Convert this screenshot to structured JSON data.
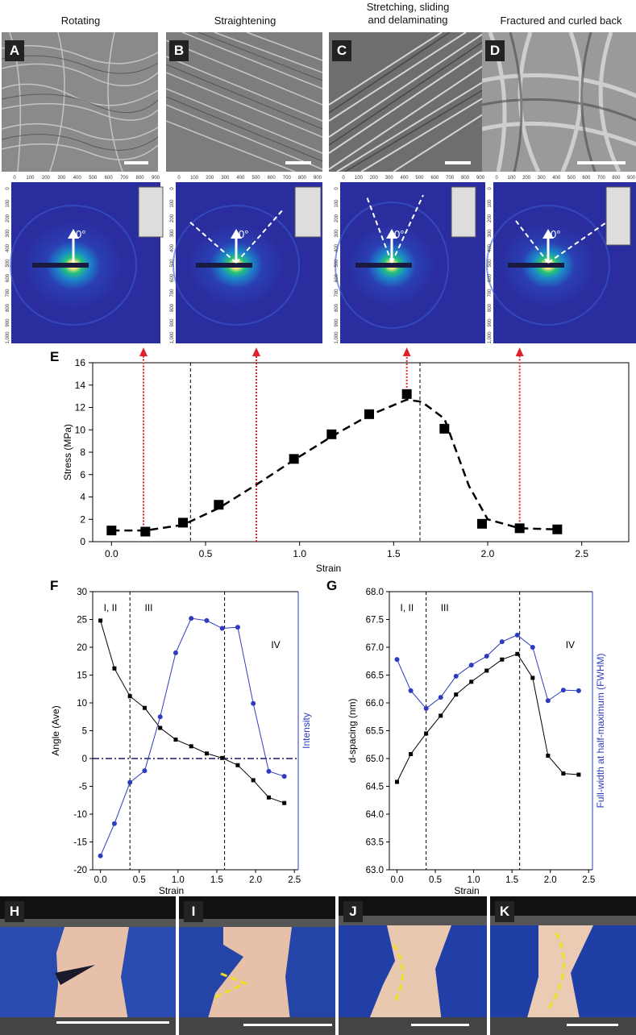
{
  "columns": [
    {
      "letter": "A",
      "title": "Rotating"
    },
    {
      "letter": "B",
      "title": "Straightening"
    },
    {
      "letter": "C",
      "title": "Stretching, sliding\nand delaminating"
    },
    {
      "letter": "D",
      "title": "Fractured and curled back"
    }
  ],
  "saxs": {
    "ticks": [
      "0",
      "100",
      "200",
      "300",
      "400",
      "500",
      "600",
      "700",
      "800",
      "900"
    ],
    "yticks": [
      "0",
      "100",
      "200",
      "300",
      "400",
      "500",
      "600",
      "700",
      "800",
      "900",
      "1,000"
    ],
    "angle_label": "0°"
  },
  "photos": {
    "letters": [
      "H",
      "I",
      "J",
      "K"
    ]
  },
  "colors": {
    "black": "#000000",
    "blue": "#2e3bbf",
    "red": "#e0202a",
    "yellow": "#f0e020"
  },
  "chart_data": [
    {
      "panel": "E",
      "type": "scatter",
      "xlabel": "Strain",
      "ylabel": "Stress (MPa)",
      "xlim": [
        -0.1,
        2.75
      ],
      "ylim": [
        0,
        16
      ],
      "xticks": [
        "0.0",
        "0.5",
        "1.0",
        "1.5",
        "2.0",
        "2.5"
      ],
      "yticks": [
        "0",
        "2",
        "4",
        "6",
        "8",
        "10",
        "12",
        "14",
        "16"
      ],
      "x": [
        0.0,
        0.18,
        0.38,
        0.57,
        0.97,
        1.17,
        1.37,
        1.57,
        1.77,
        1.97,
        2.17,
        2.37
      ],
      "y": [
        1.0,
        0.9,
        1.7,
        3.3,
        7.4,
        9.6,
        11.4,
        13.2,
        10.1,
        1.6,
        1.2,
        1.1
      ],
      "trend_x": [
        0.0,
        0.18,
        0.38,
        0.57,
        0.77,
        0.97,
        1.17,
        1.37,
        1.57,
        1.65,
        1.77,
        1.9,
        2.0,
        2.17,
        2.37
      ],
      "trend_y": [
        1.0,
        1.0,
        1.5,
        3.0,
        5.1,
        7.3,
        9.4,
        11.3,
        12.7,
        12.5,
        11.0,
        5.0,
        2.0,
        1.2,
        1.1
      ],
      "dividers": [
        0.42,
        1.64
      ],
      "arrows_at": [
        0.17,
        0.77,
        1.57,
        2.17
      ]
    },
    {
      "panel": "F",
      "type": "line",
      "xlabel": "Strain",
      "ylabel_left": "Angle (Ave)",
      "ylabel_right": "Intensity",
      "xlim": [
        -0.1,
        2.55
      ],
      "ylim": [
        -20,
        30
      ],
      "xticks": [
        "0.0",
        "0.5",
        "1.0",
        "1.5",
        "2.0",
        "2.5"
      ],
      "yticks": [
        "-20",
        "-15",
        "-10",
        "-5",
        "0",
        "5",
        "10",
        "15",
        "20",
        "25",
        "30"
      ],
      "regions": [
        "I, II",
        "III",
        "IV"
      ],
      "dividers": [
        0.38,
        1.6
      ],
      "series": [
        {
          "name": "Angle",
          "color": "#000000",
          "x": [
            0.0,
            0.18,
            0.38,
            0.57,
            0.77,
            0.97,
            1.17,
            1.37,
            1.57,
            1.77,
            1.97,
            2.17,
            2.37
          ],
          "y": [
            24.8,
            16.2,
            11.2,
            9.1,
            5.5,
            3.4,
            2.2,
            0.9,
            0.1,
            -1.2,
            -3.9,
            -7.0,
            -8.0
          ]
        },
        {
          "name": "Intensity",
          "color": "#2e3bbf",
          "x": [
            0.0,
            0.18,
            0.38,
            0.57,
            0.77,
            0.97,
            1.17,
            1.37,
            1.57,
            1.77,
            1.97,
            2.17,
            2.37
          ],
          "y": [
            -17.5,
            -11.7,
            -4.3,
            -2.2,
            7.5,
            19.0,
            25.2,
            24.8,
            23.4,
            23.6,
            9.9,
            -2.3,
            -3.2
          ]
        }
      ],
      "hline": 0
    },
    {
      "panel": "G",
      "type": "line",
      "xlabel": "Strain",
      "ylabel_left": "d-spacing (nm)",
      "ylabel_right": "Full-width at half-maximum (FWHM)",
      "xlim": [
        -0.1,
        2.55
      ],
      "ylim": [
        63.0,
        68.0
      ],
      "xticks": [
        "0.0",
        "0.5",
        "1.0",
        "1.5",
        "2.0",
        "2.5"
      ],
      "yticks": [
        "63.0",
        "63.5",
        "64.0",
        "64.5",
        "65.0",
        "65.5",
        "66.0",
        "66.5",
        "67.0",
        "67.5",
        "68.0"
      ],
      "regions": [
        "I, II",
        "III",
        "IV"
      ],
      "dividers": [
        0.38,
        1.6
      ],
      "series": [
        {
          "name": "d-spacing",
          "color": "#000000",
          "x": [
            0.0,
            0.18,
            0.38,
            0.57,
            0.77,
            0.97,
            1.17,
            1.37,
            1.57,
            1.77,
            1.97,
            2.17,
            2.37
          ],
          "y": [
            64.58,
            65.08,
            65.45,
            65.77,
            66.15,
            66.38,
            66.58,
            66.78,
            66.88,
            66.45,
            65.05,
            64.73,
            64.71
          ]
        },
        {
          "name": "FWHM",
          "color": "#2e3bbf",
          "x": [
            0.0,
            0.18,
            0.38,
            0.57,
            0.77,
            0.97,
            1.17,
            1.37,
            1.57,
            1.77,
            1.97,
            2.17,
            2.37
          ],
          "y": [
            66.78,
            66.22,
            65.9,
            66.1,
            66.48,
            66.68,
            66.84,
            67.1,
            67.22,
            67.0,
            66.04,
            66.23,
            66.22
          ]
        }
      ]
    }
  ]
}
